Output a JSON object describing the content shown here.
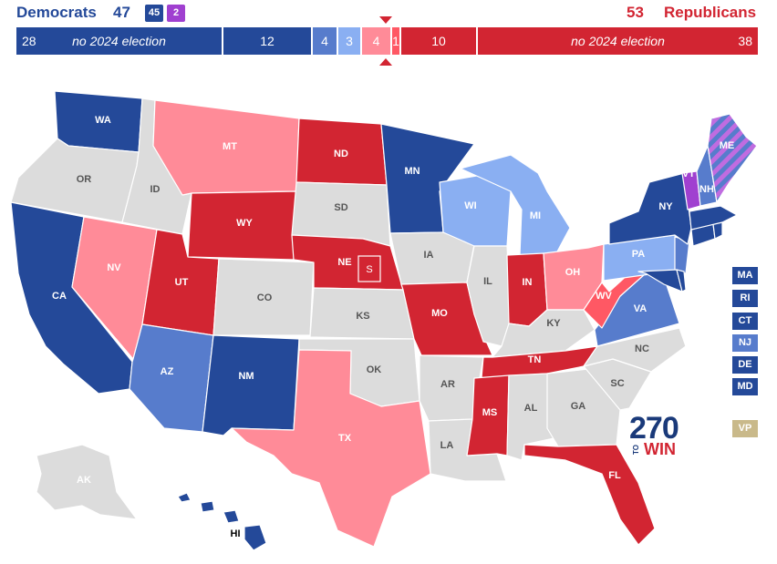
{
  "header": {
    "dem_label": "Democrats",
    "dem_total": "47",
    "dem_box1": "45",
    "dem_box2": "2",
    "rep_total": "53",
    "rep_label": "Republicans"
  },
  "colors": {
    "safe_dem": "#244999",
    "likely_dem": "#577ccc",
    "lean_dem": "#8aaff2",
    "tossup": "#d7d7d7",
    "lean_rep": "#ff8b98",
    "likely_rep": "#ff5864",
    "safe_rep": "#d22532",
    "independent": "#a040d0",
    "no_election": "#dcdcdc",
    "vp": "#c9b98a"
  },
  "bar": {
    "dem_no_election_count": "28",
    "dem_no_election_label": "no 2024 election",
    "dem_safe": "12",
    "dem_likely": "4",
    "dem_lean": "3",
    "rep_lean": "4",
    "rep_likely": "1",
    "rep_safe": "10",
    "rep_no_election_label": "no 2024 election",
    "rep_no_election_count": "38"
  },
  "states": {
    "WA": "WA",
    "OR": "OR",
    "CA": "CA",
    "NV": "NV",
    "ID": "ID",
    "MT": "MT",
    "WY": "WY",
    "UT": "UT",
    "AZ": "AZ",
    "NM": "NM",
    "CO": "CO",
    "ND": "ND",
    "SD": "SD",
    "NE": "NE",
    "KS": "KS",
    "OK": "OK",
    "TX": "TX",
    "MN": "MN",
    "IA": "IA",
    "MO": "MO",
    "AR": "AR",
    "LA": "LA",
    "WI": "WI",
    "IL": "IL",
    "MI": "MI",
    "IN": "IN",
    "OH": "OH",
    "KY": "KY",
    "TN": "TN",
    "MS": "MS",
    "AL": "AL",
    "GA": "GA",
    "FL": "FL",
    "SC": "SC",
    "NC": "NC",
    "VA": "VA",
    "WV": "WV",
    "PA": "PA",
    "NY": "NY",
    "VT": "VT",
    "NH": "NH",
    "ME": "ME",
    "AK": "AK",
    "HI": "HI",
    "NE_special": "S"
  },
  "legend": {
    "MA": "MA",
    "RI": "RI",
    "CT": "CT",
    "NJ": "NJ",
    "DE": "DE",
    "MD": "MD",
    "VP": "VP"
  },
  "logo": {
    "num": "270",
    "to": "TO",
    "win": "WIN"
  }
}
